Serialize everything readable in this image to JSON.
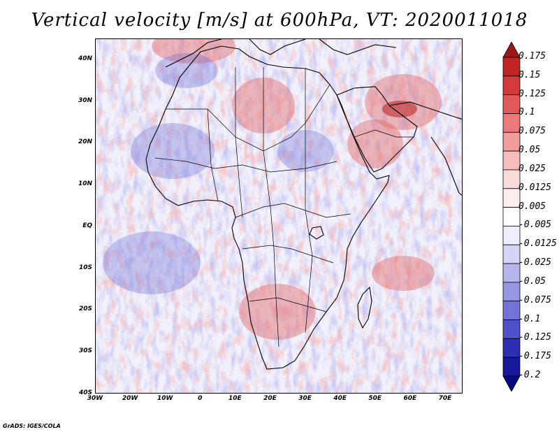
{
  "title": "Vertical velocity [m/s] at 600hPa, VT: 2020011018",
  "credit": "GrADS: IGES/COLA",
  "latitude_labels": [
    "40N",
    "30N",
    "20N",
    "10N",
    "EQ",
    "10S",
    "20S",
    "30S",
    "40S"
  ],
  "longitude_labels": [
    "30W",
    "20W",
    "10W",
    "0",
    "10E",
    "20E",
    "30E",
    "40E",
    "50E",
    "60E",
    "70E"
  ],
  "map_extent": {
    "lon_min": -30,
    "lon_max": 75,
    "lat_min": -40,
    "lat_max": 45
  },
  "colorbar": {
    "labels": [
      "0.175",
      "0.15",
      "0.125",
      "0.1",
      "0.075",
      "0.05",
      "0.025",
      "0.0125",
      "0.005",
      "-0.005",
      "-0.0125",
      "-0.025",
      "-0.05",
      "-0.075",
      "-0.1",
      "-0.125",
      "-0.175",
      "-0.2"
    ],
    "colors": [
      "#a01616",
      "#c02424",
      "#d43a3a",
      "#e35858",
      "#ec7a7a",
      "#f29c9c",
      "#f7bdbd",
      "#fbdada",
      "#fdeeee",
      "#ffffff",
      "#eeeefd",
      "#d4d4f7",
      "#b6b6ee",
      "#9696e4",
      "#7474d8",
      "#5050c8",
      "#2e2eb4",
      "#18189c",
      "#080880"
    ]
  },
  "colors": {
    "field_blue": "#9a9ae6",
    "field_red": "#ee8888",
    "coast": "#000000"
  }
}
